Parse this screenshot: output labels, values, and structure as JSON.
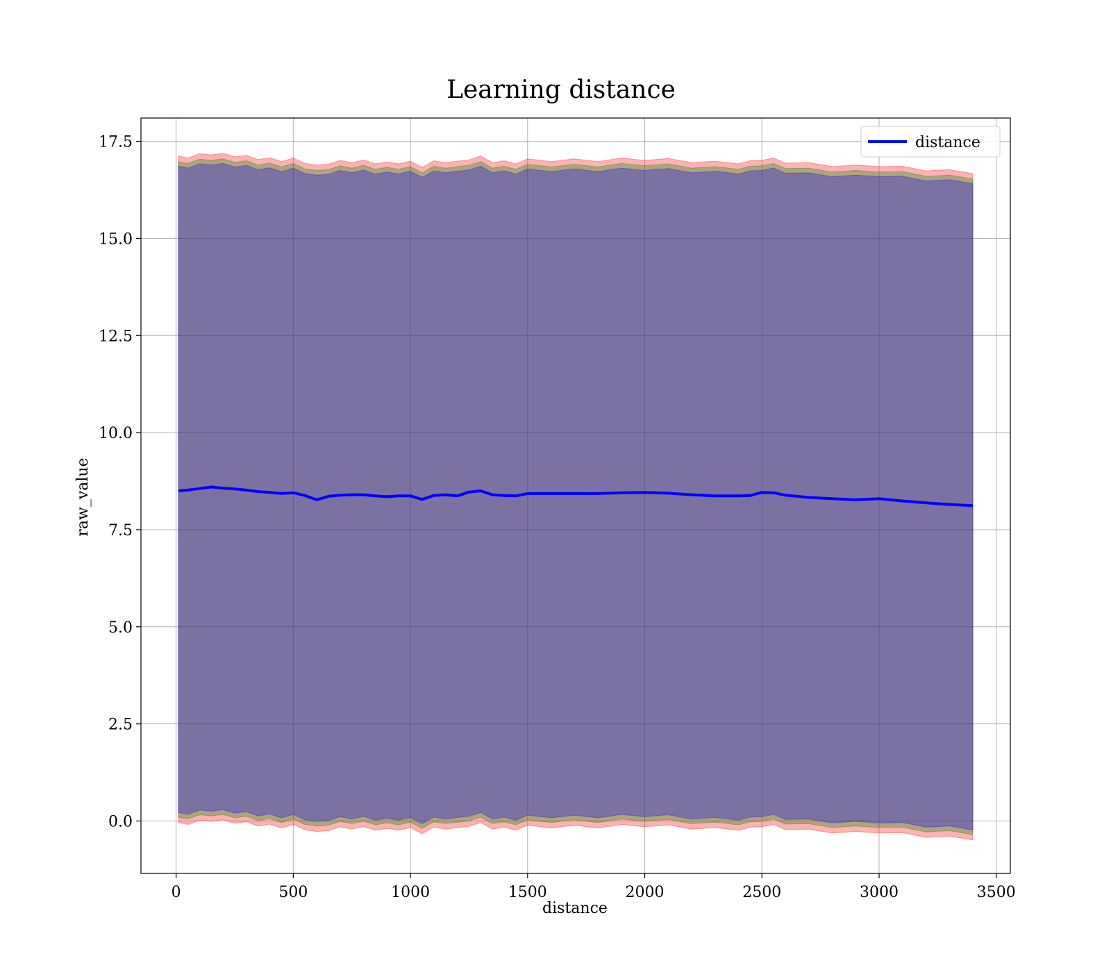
{
  "chart_data": {
    "type": "line",
    "title": "Learning distance",
    "xlabel": "distance",
    "ylabel": "raw_value",
    "xlim": [
      -150,
      3560
    ],
    "ylim": [
      -1.35,
      18.1
    ],
    "x_ticks": [
      0,
      500,
      1000,
      1500,
      2000,
      2500,
      3000,
      3500
    ],
    "y_ticks": [
      0.0,
      2.5,
      5.0,
      7.5,
      10.0,
      12.5,
      15.0,
      17.5
    ],
    "x_tick_labels": [
      "0",
      "500",
      "1000",
      "1500",
      "2000",
      "2500",
      "3000",
      "3500"
    ],
    "y_tick_labels": [
      "0.0",
      "2.5",
      "5.0",
      "7.5",
      "10.0",
      "12.5",
      "15.0",
      "17.5"
    ],
    "grid": true,
    "legend": {
      "placement": "top-right",
      "entries": [
        "distance"
      ]
    },
    "series": [
      {
        "name": "distance",
        "color": "#0000ff",
        "x": [
          10,
          50,
          100,
          150,
          200,
          250,
          300,
          350,
          400,
          450,
          500,
          550,
          600,
          650,
          700,
          750,
          800,
          850,
          900,
          950,
          1000,
          1050,
          1100,
          1150,
          1200,
          1250,
          1300,
          1350,
          1400,
          1450,
          1500,
          1600,
          1700,
          1800,
          1900,
          2000,
          2100,
          2200,
          2300,
          2400,
          2450,
          2500,
          2550,
          2600,
          2700,
          2800,
          2900,
          3000,
          3100,
          3200,
          3300,
          3400
        ],
        "y": [
          8.5,
          8.52,
          8.56,
          8.6,
          8.57,
          8.55,
          8.52,
          8.48,
          8.46,
          8.43,
          8.45,
          8.38,
          8.27,
          8.36,
          8.39,
          8.4,
          8.4,
          8.37,
          8.35,
          8.37,
          8.37,
          8.28,
          8.38,
          8.4,
          8.37,
          8.47,
          8.5,
          8.4,
          8.38,
          8.37,
          8.43,
          8.43,
          8.43,
          8.43,
          8.45,
          8.46,
          8.44,
          8.4,
          8.37,
          8.37,
          8.38,
          8.46,
          8.45,
          8.39,
          8.33,
          8.3,
          8.27,
          8.3,
          8.24,
          8.19,
          8.15,
          8.12
        ]
      }
    ],
    "bands": [
      {
        "color": "#ff0000",
        "opacity": 0.3,
        "offset": 8.58,
        "description_values_upper_minus_mean": 8.58
      },
      {
        "color": "#008000",
        "opacity": 0.3,
        "offset": 8.44
      },
      {
        "color": "#0000ff",
        "opacity": 0.3,
        "offset": 8.32
      }
    ]
  }
}
